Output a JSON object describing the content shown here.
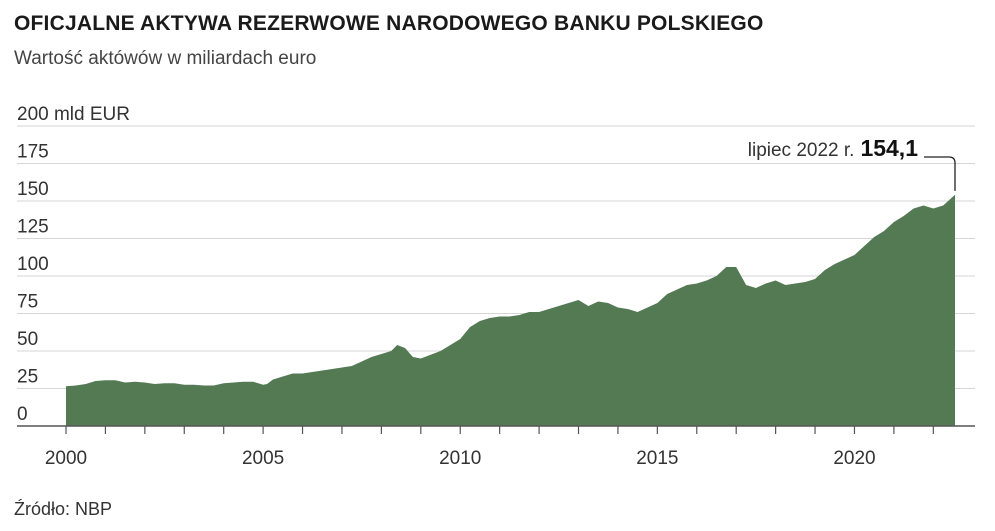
{
  "title": "OFICJALNE AKTYWA REZERWOWE NARODOWEGO BANKU POLSKIEGO",
  "subtitle": "Wartość aktówów w miliardach euro",
  "source": "Źródło: NBP",
  "colors": {
    "area": "#537a53",
    "grid": "#d6d6d6",
    "axis": "#555555"
  },
  "chart_data": {
    "type": "area",
    "title": "OFICJALNE AKTYWA REZERWOWE NARODOWEGO BANKU POLSKIEGO",
    "subtitle": "Wartość aktówów w miliardach euro",
    "ylabel": "",
    "xlabel": "",
    "ylim": [
      0,
      200
    ],
    "xlim": [
      1999.6,
      2022.6
    ],
    "y_ticks": [
      {
        "value": 200,
        "label": "200 mld EUR"
      },
      {
        "value": 175,
        "label": "175"
      },
      {
        "value": 150,
        "label": "150"
      },
      {
        "value": 125,
        "label": "125"
      },
      {
        "value": 100,
        "label": "100"
      },
      {
        "value": 75,
        "label": "75"
      },
      {
        "value": 50,
        "label": "50"
      },
      {
        "value": 25,
        "label": "25"
      },
      {
        "value": 0,
        "label": "0"
      }
    ],
    "x_ticks": [
      {
        "value": 2000,
        "label": "2000"
      },
      {
        "value": 2005,
        "label": "2005"
      },
      {
        "value": 2010,
        "label": "2010"
      },
      {
        "value": 2015,
        "label": "2015"
      },
      {
        "value": 2020,
        "label": "2020"
      }
    ],
    "grid": true,
    "annotation": {
      "x": 2022.55,
      "y": 154.1,
      "label": "lipiec 2022 r.",
      "value": "154,1"
    },
    "series": [
      {
        "x": [
          2000.0,
          2000.25,
          2000.5,
          2000.75,
          2001.0,
          2001.25,
          2001.5,
          2001.75,
          2002.0,
          2002.25,
          2002.5,
          2002.75,
          2003.0,
          2003.25,
          2003.5,
          2003.75,
          2004.0,
          2004.25,
          2004.5,
          2004.75,
          2005.0,
          2005.1,
          2005.25,
          2005.5,
          2005.75,
          2006.0,
          2006.25,
          2006.5,
          2006.75,
          2007.0,
          2007.25,
          2007.5,
          2007.75,
          2008.0,
          2008.25,
          2008.4,
          2008.6,
          2008.8,
          2009.0,
          2009.2,
          2009.5,
          2009.75,
          2010.0,
          2010.25,
          2010.5,
          2010.75,
          2011.0,
          2011.25,
          2011.5,
          2011.75,
          2012.0,
          2012.25,
          2012.5,
          2012.75,
          2013.0,
          2013.25,
          2013.5,
          2013.75,
          2014.0,
          2014.25,
          2014.5,
          2014.75,
          2015.0,
          2015.25,
          2015.5,
          2015.75,
          2016.0,
          2016.25,
          2016.5,
          2016.75,
          2017.0,
          2017.25,
          2017.5,
          2017.75,
          2018.0,
          2018.25,
          2018.5,
          2018.75,
          2019.0,
          2019.25,
          2019.5,
          2019.75,
          2020.0,
          2020.25,
          2020.5,
          2020.75,
          2021.0,
          2021.25,
          2021.5,
          2021.75,
          2022.0,
          2022.25,
          2022.55
        ],
        "values": [
          26.5,
          27,
          28,
          30,
          30.5,
          30.5,
          29,
          29.5,
          29,
          28,
          28.5,
          28.5,
          27.5,
          27.5,
          27,
          27,
          28.5,
          29,
          29.5,
          29.5,
          27.5,
          28,
          31,
          33,
          35,
          35,
          36,
          37,
          38,
          39,
          40,
          43,
          46,
          48,
          50,
          54,
          52,
          46,
          45,
          47,
          50,
          54,
          58,
          66,
          70,
          72,
          73,
          73,
          74,
          76,
          76,
          78,
          80,
          82,
          84,
          80,
          83,
          82,
          79,
          78,
          76,
          79,
          82,
          88,
          91,
          94,
          95,
          97,
          100,
          106,
          106,
          94,
          92,
          95,
          97,
          94,
          95,
          96,
          98,
          104,
          108,
          111,
          114,
          120,
          126,
          130,
          136,
          140,
          145,
          147,
          145,
          147,
          154.1
        ]
      }
    ]
  }
}
